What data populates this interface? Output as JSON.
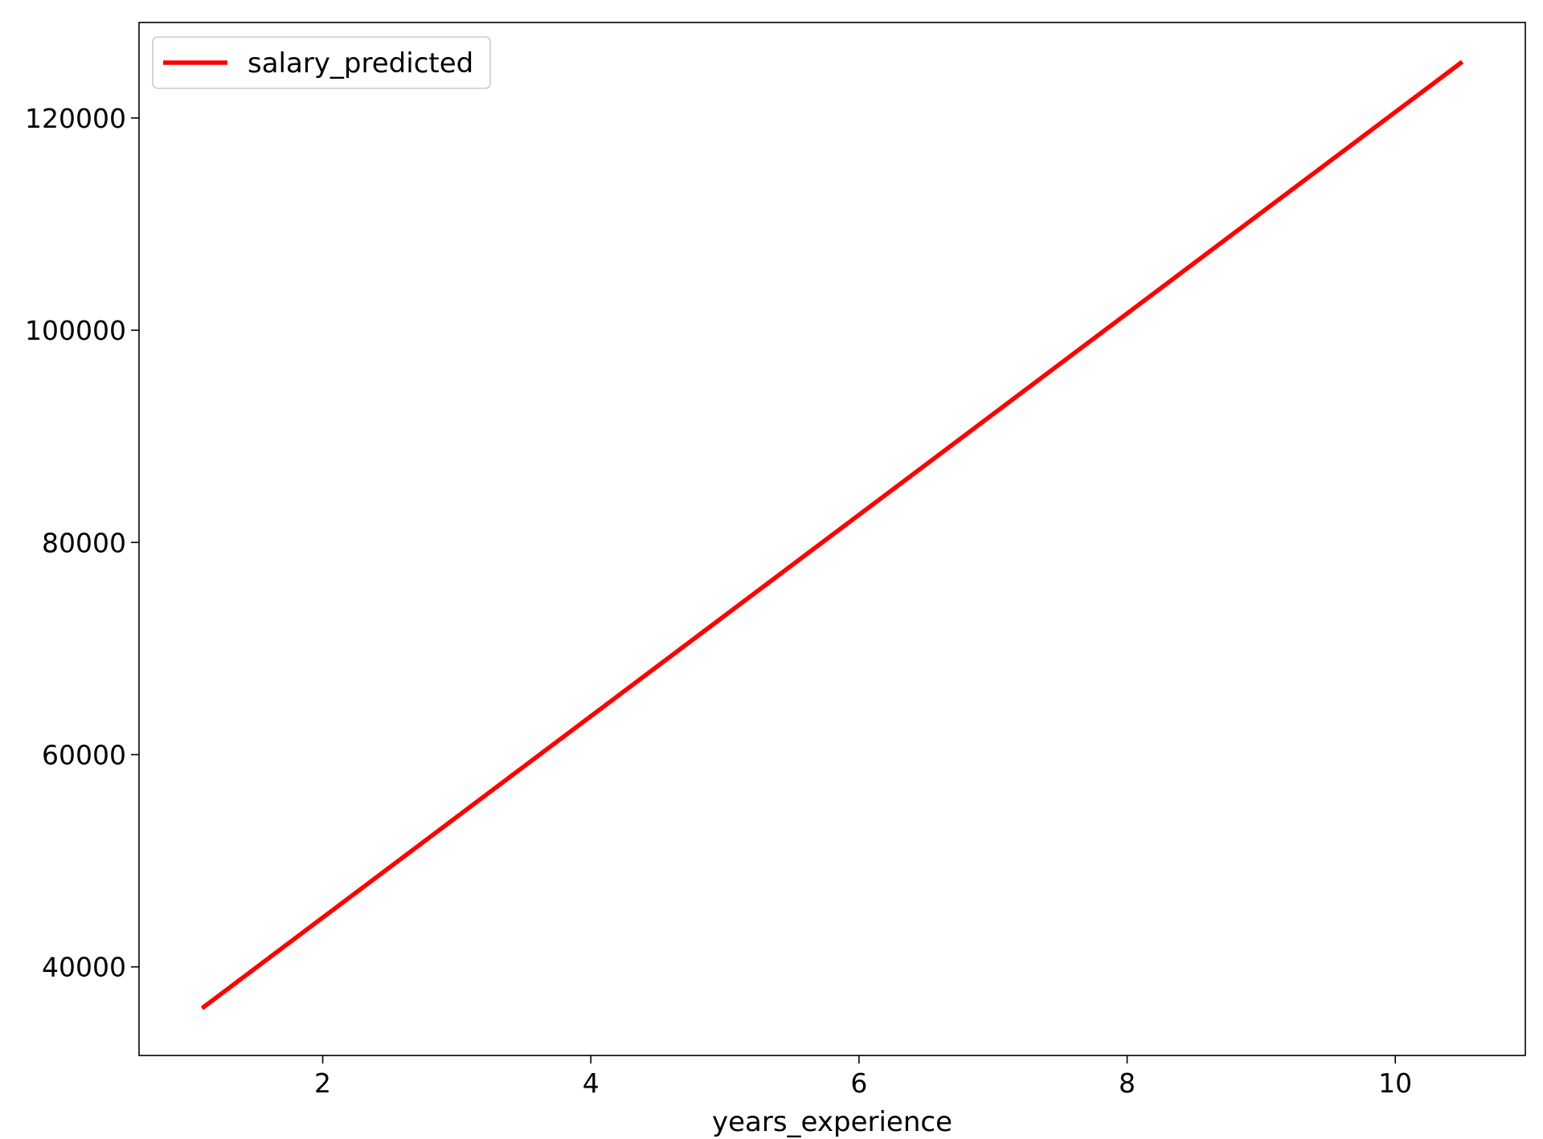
{
  "chart_data": {
    "type": "line",
    "title": "",
    "xlabel": "years_experience",
    "ylabel": "",
    "xlim": [
      0.63,
      10.97
    ],
    "ylim": [
      31650,
      129000
    ],
    "x_ticks": [
      2,
      4,
      6,
      8,
      10
    ],
    "y_ticks": [
      40000,
      60000,
      80000,
      100000,
      120000
    ],
    "grid": false,
    "legend_position": "top-left",
    "series": [
      {
        "name": "salary_predicted",
        "color": "#ff0000",
        "x": [
          1.1,
          10.5
        ],
        "y": [
          36100,
          125300
        ]
      }
    ]
  }
}
